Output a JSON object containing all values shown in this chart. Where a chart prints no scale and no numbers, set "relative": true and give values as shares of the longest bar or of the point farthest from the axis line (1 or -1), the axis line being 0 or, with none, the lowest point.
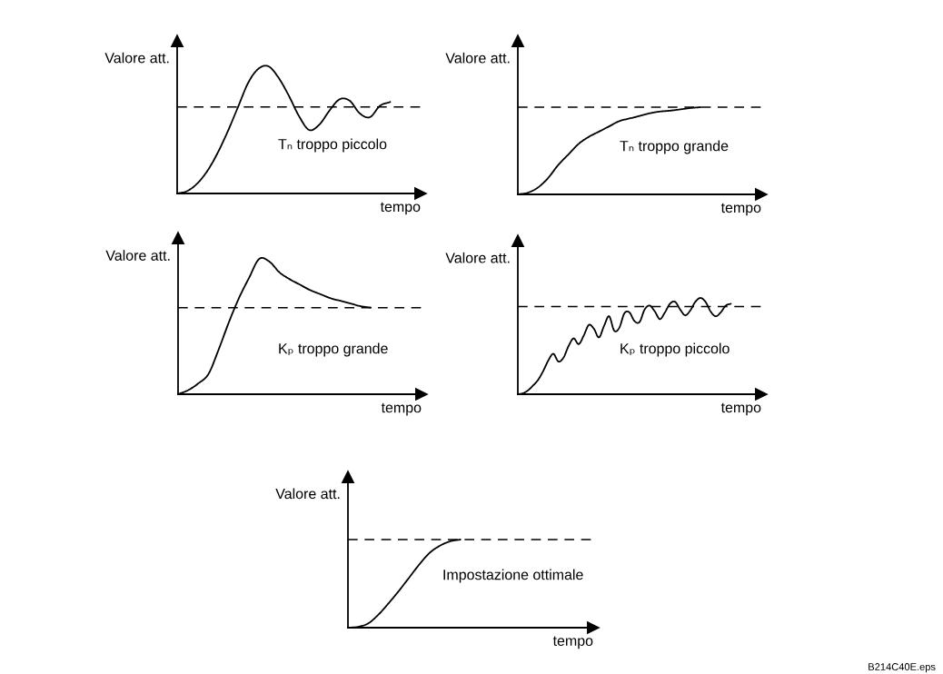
{
  "chart_data": [
    {
      "type": "line",
      "relative": true,
      "xlabel": "tempo",
      "ylabel": "Valore att.",
      "line_style": "solid",
      "annotations": [
        "Tₙ troppo piccolo"
      ],
      "ref_lines": [
        {
          "axis": "y",
          "value": 0.68,
          "color": "#000000",
          "line_style": "dashed"
        }
      ],
      "categories": [
        null,
        null,
        null,
        null,
        null,
        null,
        null,
        null,
        null,
        null,
        null,
        null,
        null,
        null,
        null,
        null,
        null,
        null,
        null,
        null,
        null,
        null,
        null,
        null,
        null
      ],
      "series": [
        {
          "color": "#000000",
          "values": [
            0,
            0.02,
            0.08,
            0.18,
            0.32,
            0.49,
            0.68,
            0.87,
            0.98,
            1.0,
            0.91,
            0.77,
            0.61,
            0.5,
            0.54,
            0.65,
            0.74,
            0.73,
            0.63,
            0.6,
            0.69,
            0.72,
            null,
            null,
            null
          ]
        }
      ]
    },
    {
      "type": "line",
      "relative": true,
      "xlabel": "tempo",
      "ylabel": "Valore att.",
      "line_style": "solid",
      "annotations": [
        "Tₙ troppo grande"
      ],
      "ref_lines": [
        {
          "axis": "y",
          "value": 1.0,
          "color": "#000000",
          "line_style": "dashed"
        }
      ],
      "categories": [
        null,
        null,
        null,
        null,
        null,
        null,
        null,
        null,
        null,
        null,
        null,
        null,
        null,
        null,
        null,
        null,
        null,
        null,
        null,
        null,
        null,
        null,
        null,
        null,
        null
      ],
      "series": [
        {
          "color": "#000000",
          "values": [
            0,
            0.02,
            0.08,
            0.19,
            0.34,
            0.46,
            0.58,
            0.66,
            0.72,
            0.78,
            0.84,
            0.87,
            0.9,
            0.93,
            0.95,
            0.96,
            0.975,
            0.99,
            1.0,
            null,
            null,
            null,
            null,
            null,
            null
          ]
        }
      ]
    },
    {
      "type": "line",
      "relative": true,
      "xlabel": "tempo",
      "ylabel": "Valore att.",
      "line_style": "solid",
      "annotations": [
        "Kₚ troppo grande"
      ],
      "ref_lines": [
        {
          "axis": "y",
          "value": 0.64,
          "color": "#000000",
          "line_style": "dashed"
        }
      ],
      "categories": [
        null,
        null,
        null,
        null,
        null,
        null,
        null,
        null,
        null,
        null,
        null,
        null,
        null,
        null,
        null,
        null,
        null,
        null,
        null,
        null,
        null,
        null,
        null,
        null,
        null
      ],
      "series": [
        {
          "color": "#000000",
          "values": [
            0,
            0.03,
            0.08,
            0.15,
            0.33,
            0.53,
            0.71,
            0.86,
            1.0,
            0.98,
            0.9,
            0.85,
            0.81,
            0.77,
            0.74,
            0.71,
            0.69,
            0.67,
            0.65,
            0.64,
            null,
            null,
            null,
            null,
            null
          ]
        }
      ]
    },
    {
      "type": "line",
      "relative": true,
      "xlabel": "tempo",
      "ylabel": "Valore att.",
      "line_style": "solid",
      "annotations": [
        "Kₚ troppo piccolo"
      ],
      "ref_lines": [
        {
          "axis": "y",
          "value": 0.91,
          "color": "#000000",
          "line_style": "dashed"
        }
      ],
      "categories": [
        null,
        null,
        null,
        null,
        null,
        null,
        null,
        null,
        null,
        null,
        null,
        null,
        null,
        null,
        null,
        null,
        null,
        null,
        null,
        null,
        null,
        null,
        null,
        null,
        null,
        null,
        null,
        null,
        null,
        null,
        null,
        null,
        null,
        null,
        null,
        null,
        null,
        null,
        null,
        null,
        null,
        null,
        null,
        null,
        null,
        null,
        null,
        null,
        null
      ],
      "series": [
        {
          "color": "#000000",
          "values": [
            0,
            0.01,
            0.04,
            0.09,
            0.15,
            0.24,
            0.35,
            0.42,
            0.34,
            0.38,
            0.5,
            0.58,
            0.52,
            0.61,
            0.72,
            0.68,
            0.59,
            0.71,
            0.81,
            0.66,
            0.69,
            0.84,
            0.85,
            0.76,
            0.75,
            0.88,
            0.92,
            0.86,
            0.78,
            0.85,
            0.94,
            0.96,
            0.88,
            0.82,
            0.87,
            0.96,
            1.0,
            0.96,
            0.86,
            0.81,
            0.85,
            0.92,
            0.94,
            null,
            null,
            null,
            null,
            null,
            null
          ]
        }
      ]
    },
    {
      "type": "line",
      "relative": true,
      "xlabel": "tempo",
      "ylabel": "Valore att.",
      "line_style": "solid",
      "annotations": [
        "Impostazione ottimale",
        "B214C40E.eps"
      ],
      "ref_lines": [
        {
          "axis": "y",
          "value": 1.0,
          "color": "#000000",
          "line_style": "dashed"
        }
      ],
      "categories": [
        null,
        null,
        null,
        null,
        null,
        null,
        null,
        null,
        null,
        null,
        null,
        null,
        null,
        null,
        null,
        null,
        null,
        null,
        null,
        null,
        null,
        null,
        null,
        null,
        null
      ],
      "series": [
        {
          "color": "#000000",
          "values": [
            0,
            0.01,
            0.05,
            0.15,
            0.28,
            0.42,
            0.57,
            0.72,
            0.85,
            0.93,
            0.98,
            1.0,
            null,
            null,
            null,
            null,
            null,
            null,
            null,
            null,
            null,
            null,
            null,
            null,
            null
          ]
        }
      ]
    }
  ]
}
